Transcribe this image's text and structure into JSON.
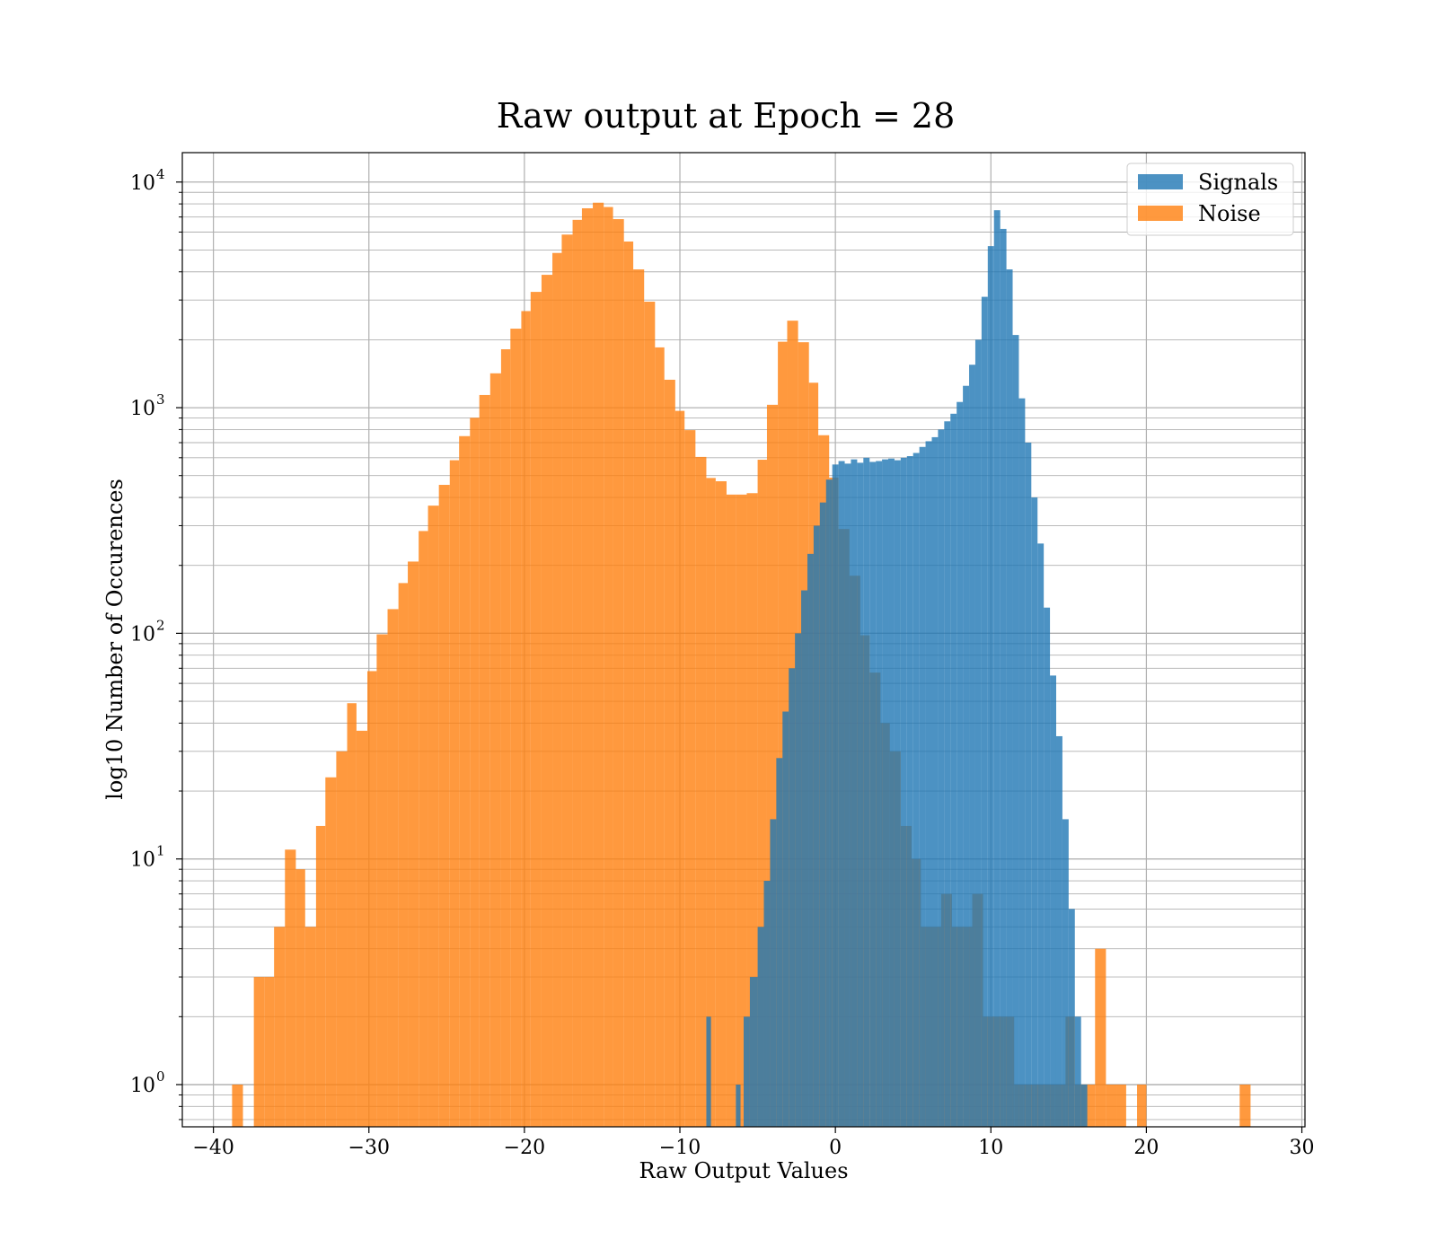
{
  "chart_data": {
    "type": "bar",
    "title": "Raw output at Epoch = 28",
    "xlabel": "Raw Output Values",
    "ylabel": "log10 Number of Occurences",
    "xlim": [
      -42,
      30.2
    ],
    "ylim": [
      0.65,
      13500
    ],
    "yscale": "log",
    "grid": true,
    "legend_position": "top-right",
    "x_ticks": [
      {
        "value": -40,
        "label": "−40"
      },
      {
        "value": -30,
        "label": "−30"
      },
      {
        "value": -20,
        "label": "−20"
      },
      {
        "value": -10,
        "label": "−10"
      },
      {
        "value": 0,
        "label": "0"
      },
      {
        "value": 10,
        "label": "10"
      },
      {
        "value": 20,
        "label": "20"
      },
      {
        "value": 30,
        "label": "30"
      }
    ],
    "y_ticks": [
      {
        "value": 1,
        "base": "10",
        "exp": "0"
      },
      {
        "value": 10,
        "base": "10",
        "exp": "1"
      },
      {
        "value": 100,
        "base": "10",
        "exp": "2"
      },
      {
        "value": 1000,
        "base": "10",
        "exp": "3"
      },
      {
        "value": 10000,
        "base": "10",
        "exp": "4"
      }
    ],
    "series": [
      {
        "name": "Noise",
        "color": "#ff7f0e",
        "bins": [
          [
            -38.8,
            -38.1,
            1
          ],
          [
            -37.4,
            -36.7,
            3
          ],
          [
            -36.7,
            -36.1,
            3
          ],
          [
            -36.1,
            -35.4,
            5
          ],
          [
            -35.4,
            -34.7,
            11
          ],
          [
            -34.7,
            -34.1,
            9
          ],
          [
            -34.1,
            -33.4,
            5
          ],
          [
            -33.4,
            -32.8,
            14
          ],
          [
            -32.8,
            -32.1,
            23
          ],
          [
            -32.1,
            -31.4,
            30
          ],
          [
            -31.4,
            -30.8,
            49
          ],
          [
            -30.8,
            -30.1,
            37
          ],
          [
            -30.1,
            -29.5,
            68
          ],
          [
            -29.5,
            -28.8,
            99
          ],
          [
            -28.8,
            -28.1,
            128
          ],
          [
            -28.1,
            -27.5,
            167
          ],
          [
            -27.5,
            -26.8,
            208
          ],
          [
            -26.8,
            -26.2,
            284
          ],
          [
            -26.2,
            -25.5,
            368
          ],
          [
            -25.5,
            -24.8,
            455
          ],
          [
            -24.8,
            -24.2,
            585
          ],
          [
            -24.2,
            -23.5,
            748
          ],
          [
            -23.5,
            -22.9,
            902
          ],
          [
            -22.9,
            -22.2,
            1138
          ],
          [
            -22.2,
            -21.5,
            1420
          ],
          [
            -21.5,
            -20.9,
            1815
          ],
          [
            -20.9,
            -20.2,
            2240
          ],
          [
            -20.2,
            -19.6,
            2680
          ],
          [
            -19.6,
            -18.9,
            3260
          ],
          [
            -18.9,
            -18.2,
            3880
          ],
          [
            -18.2,
            -17.6,
            4850
          ],
          [
            -17.6,
            -16.9,
            5850
          ],
          [
            -16.9,
            -16.3,
            6800
          ],
          [
            -16.3,
            -15.6,
            7650
          ],
          [
            -15.6,
            -14.9,
            8100
          ],
          [
            -14.9,
            -14.3,
            7750
          ],
          [
            -14.3,
            -13.6,
            6850
          ],
          [
            -13.6,
            -13.0,
            5450
          ],
          [
            -13.0,
            -12.3,
            4100
          ],
          [
            -12.3,
            -11.6,
            2950
          ],
          [
            -11.6,
            -11.0,
            1850
          ],
          [
            -11.0,
            -10.3,
            1330
          ],
          [
            -10.3,
            -9.7,
            968
          ],
          [
            -9.7,
            -9.0,
            795
          ],
          [
            -9.0,
            -8.3,
            605
          ],
          [
            -8.3,
            -7.7,
            488
          ],
          [
            -7.7,
            -7.0,
            472
          ],
          [
            -7.0,
            -6.4,
            412
          ],
          [
            -6.4,
            -5.7,
            412
          ],
          [
            -5.7,
            -5.0,
            418
          ],
          [
            -5.0,
            -4.4,
            588
          ],
          [
            -4.4,
            -3.7,
            1030
          ],
          [
            -3.7,
            -3.1,
            1960
          ],
          [
            -3.1,
            -2.4,
            2430
          ],
          [
            -2.4,
            -1.7,
            1950
          ],
          [
            -1.7,
            -1.1,
            1290
          ],
          [
            -1.1,
            -0.4,
            755
          ],
          [
            -0.4,
            0.2,
            490
          ],
          [
            0.2,
            0.9,
            290
          ],
          [
            0.9,
            1.6,
            180
          ],
          [
            1.6,
            2.2,
            98
          ],
          [
            2.2,
            2.9,
            67
          ],
          [
            2.9,
            3.5,
            40
          ],
          [
            3.5,
            4.2,
            30
          ],
          [
            4.2,
            4.9,
            14
          ],
          [
            4.9,
            5.5,
            10
          ],
          [
            5.5,
            6.2,
            5
          ],
          [
            6.2,
            6.8,
            5
          ],
          [
            6.8,
            7.5,
            7
          ],
          [
            7.5,
            8.2,
            5
          ],
          [
            8.2,
            8.8,
            5
          ],
          [
            8.8,
            9.5,
            7
          ],
          [
            9.5,
            10.1,
            2
          ],
          [
            10.1,
            10.8,
            2
          ],
          [
            10.8,
            11.5,
            2
          ],
          [
            11.5,
            12.1,
            1
          ],
          [
            12.1,
            12.8,
            1
          ],
          [
            12.8,
            13.4,
            1
          ],
          [
            13.4,
            14.1,
            1
          ],
          [
            14.1,
            14.8,
            1
          ],
          [
            14.8,
            15.4,
            2
          ],
          [
            15.4,
            16.1,
            1
          ],
          [
            16.1,
            16.7,
            1
          ],
          [
            16.7,
            17.4,
            4
          ],
          [
            17.4,
            18.1,
            1
          ],
          [
            18.1,
            18.7,
            1
          ],
          [
            19.4,
            20.0,
            1
          ],
          [
            26.0,
            26.7,
            1
          ]
        ]
      },
      {
        "name": "Signals",
        "color": "#1f77b4",
        "bins": [
          [
            -8.3,
            -8.0,
            2
          ],
          [
            -6.4,
            -6.1,
            1
          ],
          [
            -5.9,
            -5.5,
            2
          ],
          [
            -5.5,
            -5.0,
            3
          ],
          [
            -5.0,
            -4.6,
            5
          ],
          [
            -4.6,
            -4.2,
            8
          ],
          [
            -4.2,
            -3.8,
            15
          ],
          [
            -3.8,
            -3.4,
            28
          ],
          [
            -3.4,
            -3.0,
            45
          ],
          [
            -3.0,
            -2.6,
            70
          ],
          [
            -2.6,
            -2.2,
            100
          ],
          [
            -2.2,
            -1.8,
            155
          ],
          [
            -1.8,
            -1.4,
            225
          ],
          [
            -1.4,
            -1.0,
            300
          ],
          [
            -1.0,
            -0.6,
            380
          ],
          [
            -0.6,
            -0.2,
            480
          ],
          [
            -0.2,
            0.2,
            560
          ],
          [
            0.2,
            0.6,
            580
          ],
          [
            0.6,
            1.0,
            565
          ],
          [
            1.0,
            1.4,
            590
          ],
          [
            1.4,
            1.8,
            570
          ],
          [
            1.8,
            2.2,
            600
          ],
          [
            2.2,
            2.6,
            575
          ],
          [
            2.6,
            3.0,
            580
          ],
          [
            3.0,
            3.4,
            590
          ],
          [
            3.4,
            3.8,
            595
          ],
          [
            3.8,
            4.2,
            585
          ],
          [
            4.2,
            4.6,
            600
          ],
          [
            4.6,
            5.0,
            610
          ],
          [
            5.0,
            5.4,
            630
          ],
          [
            5.4,
            5.8,
            670
          ],
          [
            5.8,
            6.2,
            710
          ],
          [
            6.2,
            6.6,
            740
          ],
          [
            6.6,
            7.0,
            800
          ],
          [
            7.0,
            7.4,
            870
          ],
          [
            7.4,
            7.8,
            940
          ],
          [
            7.8,
            8.2,
            1060
          ],
          [
            8.2,
            8.6,
            1250
          ],
          [
            8.6,
            9.0,
            1550
          ],
          [
            9.0,
            9.4,
            2000
          ],
          [
            9.4,
            9.8,
            3100
          ],
          [
            9.8,
            10.2,
            5200
          ],
          [
            10.2,
            10.6,
            7500
          ],
          [
            10.6,
            11.0,
            6200
          ],
          [
            11.0,
            11.4,
            4100
          ],
          [
            11.4,
            11.8,
            2100
          ],
          [
            11.8,
            12.2,
            1100
          ],
          [
            12.2,
            12.6,
            700
          ],
          [
            12.6,
            13.0,
            400
          ],
          [
            13.0,
            13.4,
            250
          ],
          [
            13.4,
            13.8,
            130
          ],
          [
            13.8,
            14.2,
            65
          ],
          [
            14.2,
            14.6,
            35
          ],
          [
            14.6,
            15.0,
            15
          ],
          [
            15.0,
            15.4,
            6
          ],
          [
            15.4,
            15.8,
            2
          ],
          [
            15.8,
            16.2,
            1
          ]
        ]
      }
    ]
  }
}
